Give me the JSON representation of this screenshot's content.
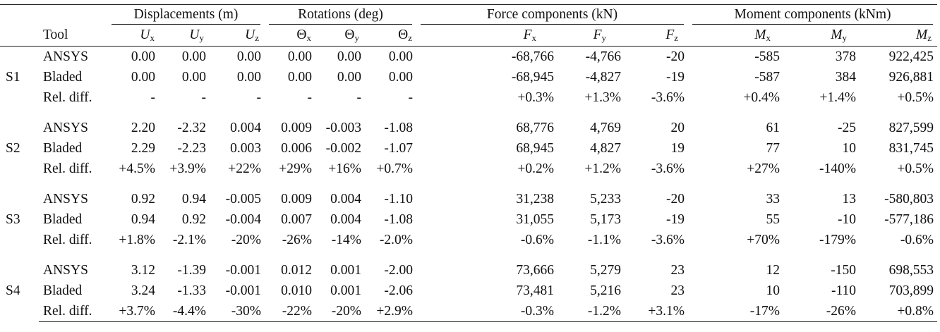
{
  "table": {
    "tool_header": "Tool",
    "groups": [
      {
        "label": "Displacements (m)",
        "span": 3
      },
      {
        "label": "Rotations (deg)",
        "span": 3
      },
      {
        "label": "Force components (kN)",
        "span": 3
      },
      {
        "label": "Moment components (kNm)",
        "span": 3
      }
    ],
    "columns": [
      {
        "symbol": "U",
        "sub": "x",
        "greek": false
      },
      {
        "symbol": "U",
        "sub": "y",
        "greek": false
      },
      {
        "symbol": "U",
        "sub": "z",
        "greek": false
      },
      {
        "symbol": "Θ",
        "sub": "x",
        "greek": true
      },
      {
        "symbol": "Θ",
        "sub": "y",
        "greek": true
      },
      {
        "symbol": "Θ",
        "sub": "z",
        "greek": true
      },
      {
        "symbol": "F",
        "sub": "x",
        "greek": false
      },
      {
        "symbol": "F",
        "sub": "y",
        "greek": false
      },
      {
        "symbol": "F",
        "sub": "z",
        "greek": false
      },
      {
        "symbol": "M",
        "sub": "x",
        "greek": false
      },
      {
        "symbol": "M",
        "sub": "y",
        "greek": false
      },
      {
        "symbol": "M",
        "sub": "z",
        "greek": false
      }
    ],
    "scenarios": [
      {
        "label": "S1",
        "rows": [
          {
            "tool": "ANSYS",
            "values": [
              "0.00",
              "0.00",
              "0.00",
              "0.00",
              "0.00",
              "0.00",
              "-68,766",
              "-4,766",
              "-20",
              "-585",
              "378",
              "922,425"
            ]
          },
          {
            "tool": "Bladed",
            "values": [
              "0.00",
              "0.00",
              "0.00",
              "0.00",
              "0.00",
              "0.00",
              "-68,945",
              "-4,827",
              "-19",
              "-587",
              "384",
              "926,881"
            ]
          },
          {
            "tool": "Rel. diff.",
            "values": [
              "-",
              "-",
              "-",
              "-",
              "-",
              "-",
              "+0.3%",
              "+1.3%",
              "-3.6%",
              "+0.4%",
              "+1.4%",
              "+0.5%"
            ]
          }
        ]
      },
      {
        "label": "S2",
        "rows": [
          {
            "tool": "ANSYS",
            "values": [
              "2.20",
              "-2.32",
              "0.004",
              "0.009",
              "-0.003",
              "-1.08",
              "68,776",
              "4,769",
              "20",
              "61",
              "-25",
              "827,599"
            ]
          },
          {
            "tool": "Bladed",
            "values": [
              "2.29",
              "-2.23",
              "0.003",
              "0.006",
              "-0.002",
              "-1.07",
              "68,945",
              "4,827",
              "19",
              "77",
              "10",
              "831,745"
            ]
          },
          {
            "tool": "Rel. diff.",
            "values": [
              "+4.5%",
              "+3.9%",
              "+22%",
              "+29%",
              "+16%",
              "+0.7%",
              "+0.2%",
              "+1.2%",
              "-3.6%",
              "+27%",
              "-140%",
              "+0.5%"
            ]
          }
        ]
      },
      {
        "label": "S3",
        "rows": [
          {
            "tool": "ANSYS",
            "values": [
              "0.92",
              "0.94",
              "-0.005",
              "0.009",
              "0.004",
              "-1.10",
              "31,238",
              "5,233",
              "-20",
              "33",
              "13",
              "-580,803"
            ]
          },
          {
            "tool": "Bladed",
            "values": [
              "0.94",
              "0.92",
              "-0.004",
              "0.007",
              "0.004",
              "-1.08",
              "31,055",
              "5,173",
              "-19",
              "55",
              "-10",
              "-577,186"
            ]
          },
          {
            "tool": "Rel. diff.",
            "values": [
              "+1.8%",
              "-2.1%",
              "-20%",
              "-26%",
              "-14%",
              "-2.0%",
              "-0.6%",
              "-1.1%",
              "-3.6%",
              "+70%",
              "-179%",
              "-0.6%"
            ]
          }
        ]
      },
      {
        "label": "S4",
        "rows": [
          {
            "tool": "ANSYS",
            "values": [
              "3.12",
              "-1.39",
              "-0.001",
              "0.012",
              "0.001",
              "-2.00",
              "73,666",
              "5,279",
              "23",
              "12",
              "-150",
              "698,553"
            ]
          },
          {
            "tool": "Bladed",
            "values": [
              "3.24",
              "-1.33",
              "-0.001",
              "0.010",
              "0.001",
              "-2.06",
              "73,481",
              "5,216",
              "23",
              "10",
              "-110",
              "703,899"
            ]
          },
          {
            "tool": "Rel. diff.",
            "values": [
              "+3.7%",
              "-4.4%",
              "-30%",
              "-22%",
              "-20%",
              "+2.9%",
              "-0.3%",
              "-1.2%",
              "+3.1%",
              "-17%",
              "-26%",
              "+0.8%"
            ]
          }
        ]
      }
    ]
  }
}
